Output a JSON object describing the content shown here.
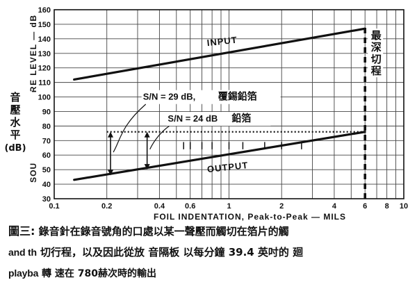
{
  "chart_data": {
    "type": "line",
    "x_axis": {
      "label": "FOIL INDENTATION, Peak-to-Peak — MILS",
      "scale": "log",
      "range": [
        0.1,
        10
      ],
      "tick_labels": [
        "0.1",
        "0.2",
        "0.4",
        "0.6",
        "1",
        "2",
        "4",
        "6",
        "8",
        "10"
      ]
    },
    "y_axis": {
      "label_fragments": [
        "SOU",
        "RE LEVEL — dB"
      ],
      "cjk_label": [
        "音",
        "壓",
        "水",
        "平",
        "(dB)"
      ],
      "range": [
        30,
        160
      ],
      "tick_labels": [
        "30",
        "40",
        "50",
        "60",
        "70",
        "80",
        "90",
        "100",
        "110",
        "120",
        "130",
        "140",
        "150",
        "160"
      ]
    },
    "grid": true,
    "series": [
      {
        "name": "INPUT",
        "x": [
          0.13,
          6
        ],
        "y": [
          112,
          147
        ]
      },
      {
        "name": "OUTPUT",
        "x": [
          0.13,
          6
        ],
        "y": [
          43,
          76
        ]
      }
    ],
    "reference_lines": [
      {
        "type": "dotted",
        "x": [
          0.2,
          6
        ],
        "y": 76
      },
      {
        "type": "dashed-vertical",
        "x": 6,
        "y": [
          30,
          150
        ]
      }
    ],
    "arrows": [
      {
        "x": 0.21,
        "y": [
          46,
          76
        ]
      },
      {
        "x": 0.34,
        "y": [
          50,
          76
        ]
      }
    ],
    "annotations": {
      "input_label": "INPUT",
      "output_label": "OUTPUT",
      "sn1": "S/N = 29 dB,",
      "sn1_cjk": "覆錫鉛箔",
      "sn2": "S/N = 24 dB",
      "sn2_cjk": "鉛箔",
      "max_depth": [
        "最",
        "深",
        "切",
        "程"
      ]
    }
  },
  "caption": {
    "figure_label": "圖三:",
    "line1": "錄音針在錄音號角的口處以某一聲壓而觸切在箔片的觸",
    "frag2": "and th",
    "line2": "切行程，以及因此從放 音隔板 以每分鐘 39.4 英吋的 廻",
    "frag3": "playba",
    "line3": "轉 速在 780赫次時的輸出"
  }
}
